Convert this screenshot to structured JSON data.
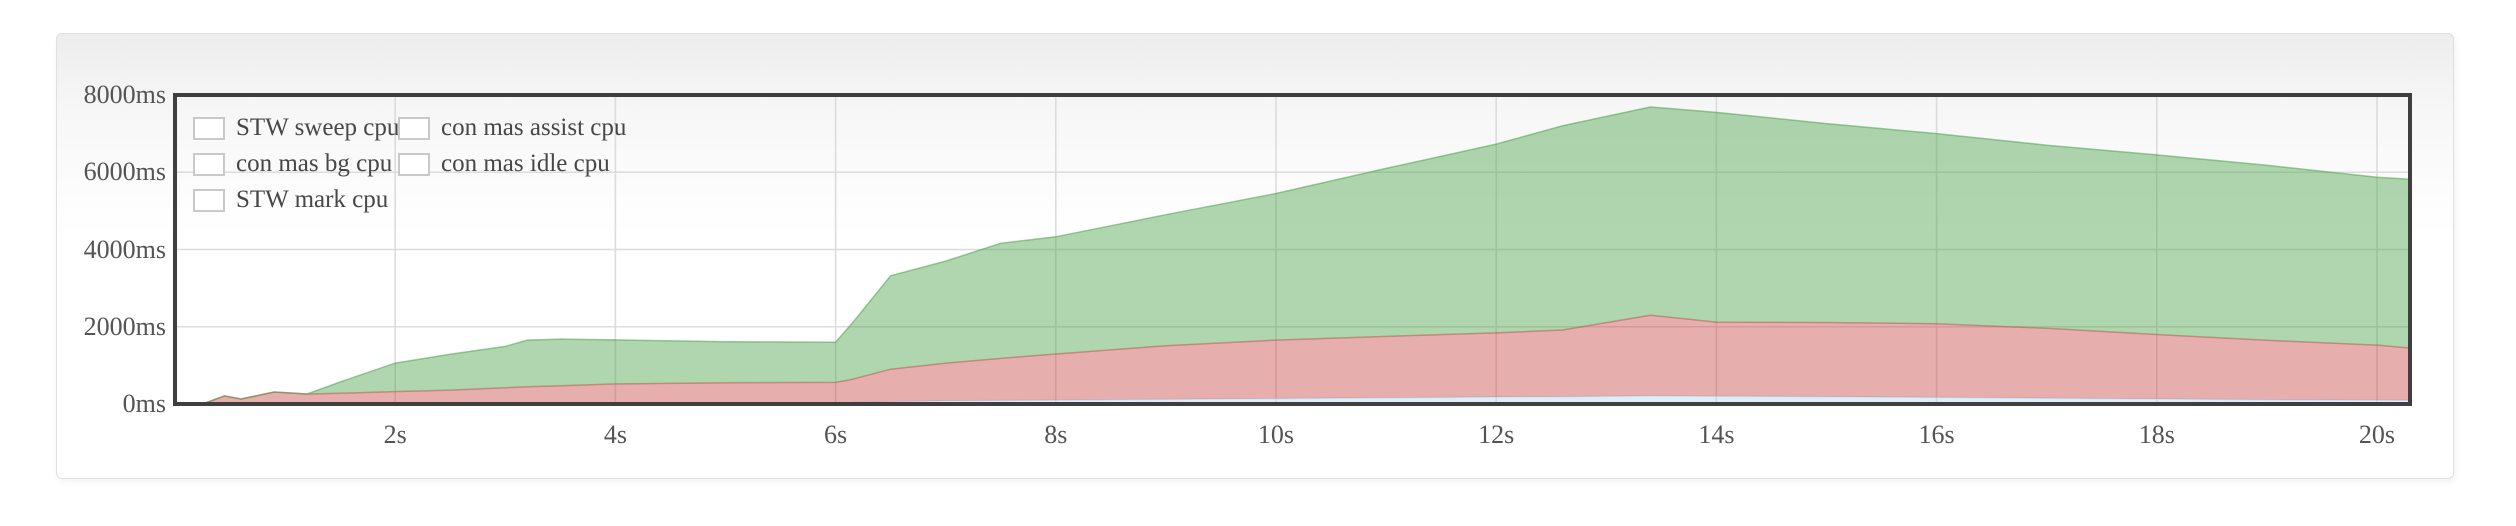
{
  "page": {
    "background": "#ffffff"
  },
  "card": {
    "border_color": "#e0e0e0",
    "gradient_top": "#ededed",
    "gradient_bottom": "#ffffff"
  },
  "colors": {
    "grid": "#dcdcdc",
    "plot_border": "#3f3f3f",
    "tick_text": "#545454",
    "legend_text": "#474747",
    "swatch_border": "#c9c9c9"
  },
  "legend": {
    "items": [
      {
        "label": "STW sweep cpu",
        "color": "#e7c24a"
      },
      {
        "label": "con mas bg cpu",
        "color": "#c94c4c"
      },
      {
        "label": "STW mark cpu",
        "color": "#8b3ee0"
      },
      {
        "label": "con mas assist cpu",
        "color": "#b3d8f2"
      },
      {
        "label": "con mas idle cpu",
        "color": "#4fa350"
      }
    ]
  },
  "chart_data": {
    "type": "area",
    "stacked": true,
    "title": "",
    "xlabel": "",
    "ylabel": "",
    "x_unit": "s",
    "y_unit": "ms",
    "xlim": [
      0,
      20.3
    ],
    "ylim": [
      0,
      8000
    ],
    "grid": true,
    "legend_position": "top-left",
    "fill_opacity": 0.45,
    "x_ticks": [
      {
        "value": 2,
        "label": "2s"
      },
      {
        "value": 4,
        "label": "4s"
      },
      {
        "value": 6,
        "label": "6s"
      },
      {
        "value": 8,
        "label": "8s"
      },
      {
        "value": 10,
        "label": "10s"
      },
      {
        "value": 12,
        "label": "12s"
      },
      {
        "value": 14,
        "label": "14s"
      },
      {
        "value": 16,
        "label": "16s"
      },
      {
        "value": 18,
        "label": "18s"
      },
      {
        "value": 20,
        "label": "20s"
      }
    ],
    "y_ticks": [
      {
        "value": 0,
        "label": "0ms"
      },
      {
        "value": 2000,
        "label": "2000ms"
      },
      {
        "value": 4000,
        "label": "4000ms"
      },
      {
        "value": 6000,
        "label": "6000ms"
      },
      {
        "value": 8000,
        "label": "8000ms"
      }
    ],
    "x": [
      0,
      0.25,
      0.45,
      0.6,
      0.9,
      1.2,
      1.5,
      2,
      2.5,
      3,
      3.2,
      3.5,
      4,
      5,
      6,
      6.15,
      6.5,
      7,
      7.5,
      8,
      9,
      10,
      11,
      12,
      12.6,
      13.4,
      14,
      15,
      16,
      17,
      18,
      19,
      20,
      20.3
    ],
    "series": [
      {
        "name": "STW sweep cpu",
        "color": "#e7c24a",
        "values": [
          0,
          0,
          0,
          0,
          0,
          0,
          0,
          0,
          0,
          0,
          0,
          0,
          0,
          0,
          0,
          0,
          0,
          0,
          0,
          0,
          0,
          0,
          0,
          0,
          0,
          0,
          0,
          0,
          0,
          0,
          0,
          0,
          0,
          0
        ]
      },
      {
        "name": "con mas assist cpu",
        "color": "#b3d8f2",
        "values": [
          0,
          0,
          0,
          0,
          0,
          0,
          0,
          0,
          0,
          0,
          0,
          0,
          0,
          0,
          0,
          40,
          60,
          80,
          90,
          100,
          120,
          140,
          160,
          180,
          190,
          210,
          200,
          190,
          170,
          150,
          130,
          110,
          100,
          95
        ]
      },
      {
        "name": "con mas bg cpu",
        "color": "#c94c4c",
        "values": [
          0,
          0,
          210,
          130,
          310,
          260,
          280,
          320,
          360,
          420,
          445,
          470,
          520,
          550,
          560,
          600,
          840,
          980,
          1090,
          1195,
          1390,
          1515,
          1590,
          1660,
          1725,
          2090,
          1920,
          1920,
          1910,
          1810,
          1670,
          1540,
          1425,
          1355
        ]
      },
      {
        "name": "STW mark cpu",
        "color": "#8b3ee0",
        "values": [
          0,
          0,
          0,
          0,
          0,
          0,
          0,
          0,
          0,
          0,
          0,
          0,
          0,
          0,
          0,
          0,
          0,
          0,
          0,
          0,
          0,
          0,
          0,
          0,
          0,
          0,
          0,
          0,
          0,
          0,
          0,
          0,
          0,
          0
        ]
      },
      {
        "name": "con mas idle cpu",
        "color": "#4fa350",
        "values": [
          0,
          0,
          0,
          0,
          0,
          0,
          290,
          740,
          930,
          1070,
          1210,
          1210,
          1140,
          1060,
          1040,
          1450,
          2420,
          2640,
          2980,
          3035,
          3390,
          3795,
          4350,
          4890,
          5285,
          5390,
          5430,
          5150,
          4920,
          4740,
          4650,
          4530,
          4345,
          4370
        ]
      }
    ]
  }
}
